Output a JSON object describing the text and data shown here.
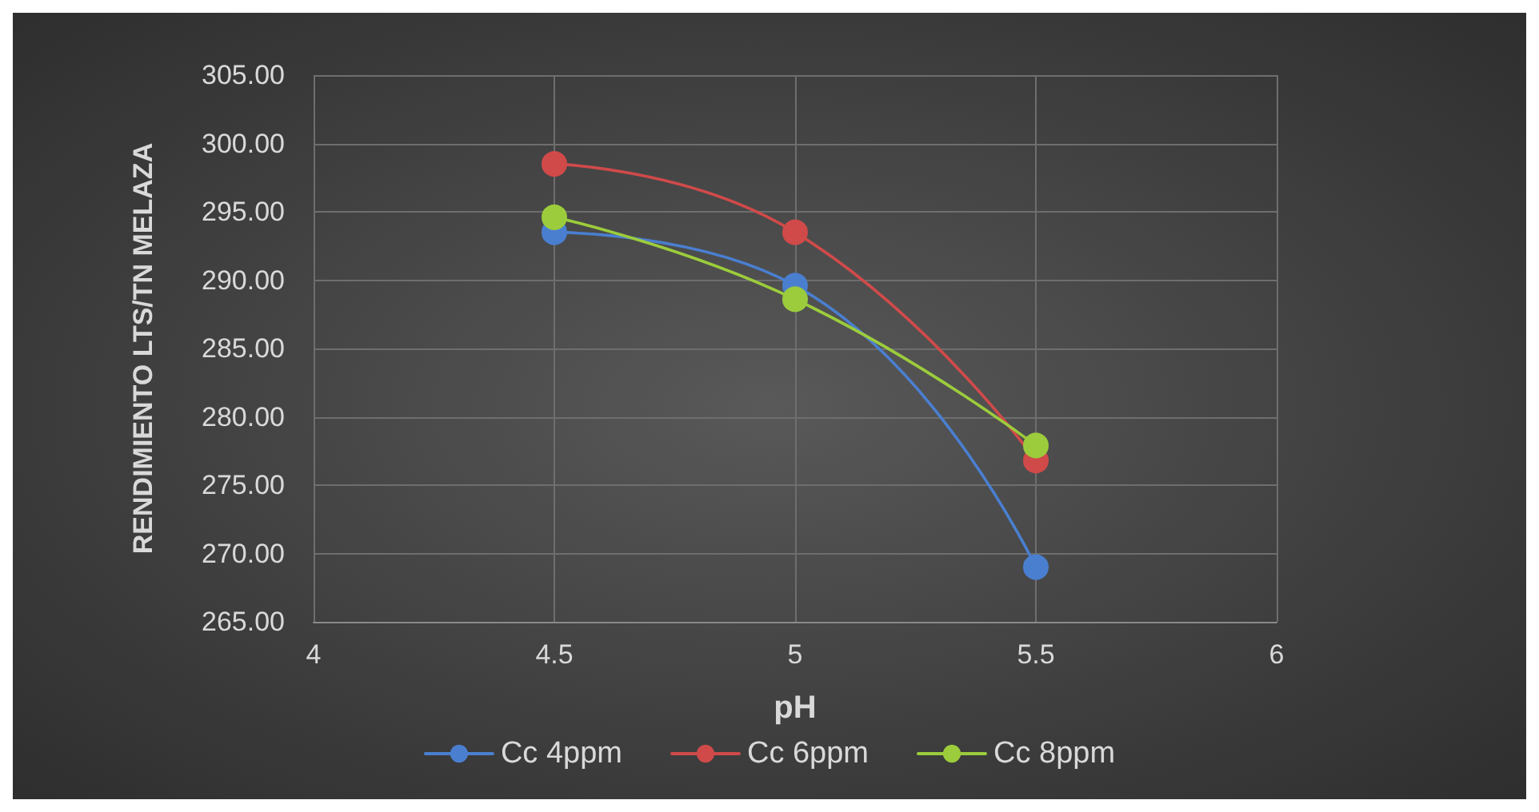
{
  "chart_data": {
    "type": "line",
    "xlabel": "pH",
    "ylabel": "RENDIMIENTO LTS/TN MELAZA",
    "x": [
      4.5,
      5,
      5.5
    ],
    "series": [
      {
        "name": "Cc 4ppm",
        "color": "#4a7fd0",
        "values": [
          293.5,
          289.6,
          269.0
        ]
      },
      {
        "name": "Cc 6ppm",
        "color": "#d04a4a",
        "values": [
          298.5,
          293.5,
          276.8
        ]
      },
      {
        "name": "Cc 8ppm",
        "color": "#9ccc3c",
        "values": [
          294.6,
          288.6,
          277.9
        ]
      }
    ],
    "xlim": [
      4,
      6
    ],
    "xticks": [
      4,
      4.5,
      5,
      5.5,
      6
    ],
    "ylim": [
      265,
      305
    ],
    "yticks": [
      {
        "value": 265,
        "label": "265.00"
      },
      {
        "value": 270,
        "label": "270.00"
      },
      {
        "value": 275,
        "label": "275.00"
      },
      {
        "value": 280,
        "label": "280.00"
      },
      {
        "value": 285,
        "label": "285.00"
      },
      {
        "value": 290,
        "label": "290.00"
      },
      {
        "value": 295,
        "label": "295.00"
      },
      {
        "value": 300,
        "label": "300.00"
      },
      {
        "value": 305,
        "label": "305.00"
      }
    ],
    "grid": true,
    "legend": "bottom",
    "marker": "circle",
    "line_style": "solid"
  }
}
